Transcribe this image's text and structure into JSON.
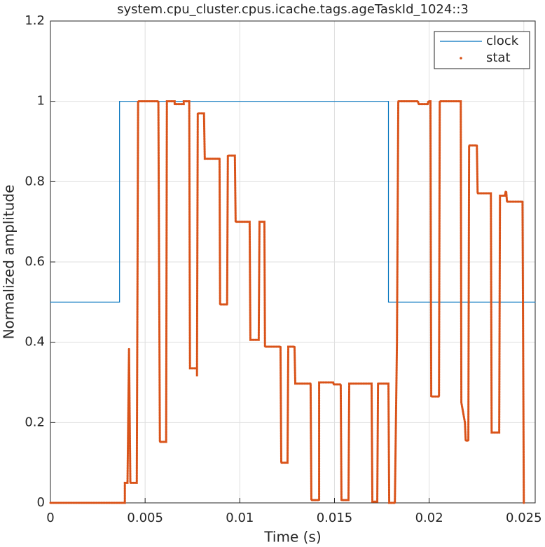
{
  "chart_data": {
    "type": "line",
    "title": "system.cpu_cluster.cpus.icache.tags.ageTaskId_1024::3",
    "xlabel": "Time (s)",
    "ylabel": "Normalized amplitude",
    "xlim": [
      0,
      0.0256
    ],
    "ylim": [
      0,
      1.2
    ],
    "xticks": [
      0,
      0.005,
      0.01,
      0.015,
      0.02,
      0.025
    ],
    "yticks": [
      0,
      0.2,
      0.4,
      0.6,
      0.8,
      1,
      1.2
    ],
    "grid": true,
    "legend": "top-right",
    "series": [
      {
        "name": "clock",
        "color": "#0072bd",
        "style": "solid",
        "x": [
          0,
          0.00365,
          0.00365,
          0.01785,
          0.01785,
          0.0256
        ],
        "values": [
          0.5,
          0.5,
          1,
          1,
          0.5,
          0.5
        ]
      },
      {
        "name": "stat",
        "color": "#d95319",
        "style": "dotted",
        "x": [
          0,
          0.00393,
          0.00393,
          0.00407,
          0.00415,
          0.00422,
          0.00456,
          0.00463,
          0.0057,
          0.00578,
          0.00611,
          0.00615,
          0.00656,
          0.00656,
          0.00704,
          0.00704,
          0.00733,
          0.00737,
          0.00774,
          0.00774,
          0.00778,
          0.00811,
          0.00815,
          0.00893,
          0.00896,
          0.00933,
          0.00937,
          0.00974,
          0.00978,
          0.01052,
          0.01056,
          0.011,
          0.01104,
          0.0113,
          0.01133,
          0.01215,
          0.01219,
          0.01252,
          0.01256,
          0.01289,
          0.01293,
          0.01374,
          0.01378,
          0.01419,
          0.01419,
          0.01493,
          0.01496,
          0.01533,
          0.01537,
          0.01574,
          0.01578,
          0.01696,
          0.017,
          0.01726,
          0.0173,
          0.01785,
          0.01789,
          0.01819,
          0.0183,
          0.01837,
          0.01941,
          0.01944,
          0.01993,
          0.01996,
          0.02007,
          0.02011,
          0.02052,
          0.02056,
          0.02167,
          0.0217,
          0.02189,
          0.02193,
          0.02207,
          0.02211,
          0.02252,
          0.02256,
          0.02326,
          0.0233,
          0.0237,
          0.02374,
          0.024,
          0.02404,
          0.02407,
          0.02411,
          0.02493,
          0.025
        ],
        "values": [
          0,
          0,
          0.05,
          0.05,
          0.384,
          0.05,
          0.05,
          1,
          1,
          0.152,
          0.152,
          1,
          1,
          0.993,
          0.993,
          1,
          1,
          0.335,
          0.335,
          0.315,
          0.97,
          0.97,
          0.857,
          0.857,
          0.494,
          0.494,
          0.865,
          0.865,
          0.7,
          0.7,
          0.406,
          0.406,
          0.7,
          0.7,
          0.389,
          0.389,
          0.1,
          0.1,
          0.389,
          0.389,
          0.297,
          0.297,
          0.007,
          0.007,
          0.3,
          0.3,
          0.295,
          0.295,
          0.007,
          0.007,
          0.297,
          0.297,
          0.003,
          0.003,
          0.297,
          0.297,
          0,
          0,
          0.4,
          1,
          1,
          0.993,
          0.993,
          1,
          1,
          0.265,
          0.265,
          1,
          1,
          0.25,
          0.2,
          0.155,
          0.155,
          0.89,
          0.89,
          0.771,
          0.771,
          0.175,
          0.175,
          0.765,
          0.765,
          0.775,
          0.775,
          0.75,
          0.75,
          0
        ]
      }
    ]
  }
}
